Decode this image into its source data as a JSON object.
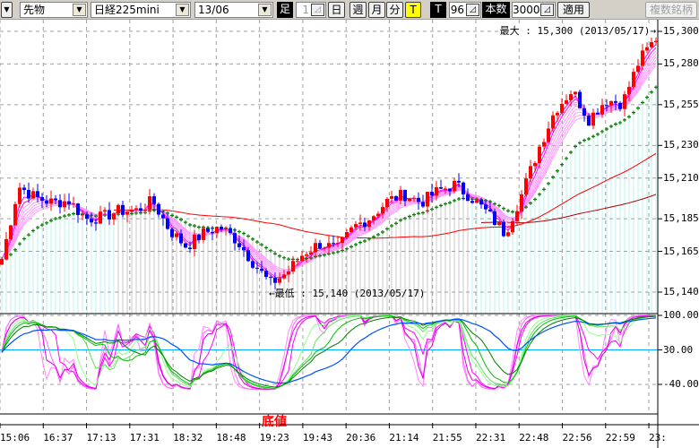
{
  "toolbar": {
    "market_select": "先物",
    "symbol_select": "日経225mini",
    "contract_select": "13/06",
    "bar_label": "足",
    "bar_value": "1",
    "day_button": "日",
    "week_button": "週",
    "month_button": "月",
    "minute_button": "分",
    "tick_button": "T",
    "t_label": "T",
    "t_value": "96",
    "count_label": "本数",
    "count_value": "3000",
    "apply_button": "適用",
    "multi_button": "複数銘柄"
  },
  "annotations": {
    "max": "最大 : 15,300 (2013/05/17)→",
    "min": "←最低 : 15,140 (2013/05/17)",
    "bottom": "底値"
  },
  "colors": {
    "up": "#ff0000",
    "down": "#0000ff",
    "ema": "#ff00ff",
    "ma_mid": "#008000",
    "ma_long": "#ff0000",
    "osc_blue": "#0050ff",
    "osc_line": "#00b0ff"
  },
  "chart_data": {
    "type": "candlestick",
    "price_axis": {
      "ticks": [
        "15,300",
        "15,280",
        "15,255",
        "15,230",
        "15,210",
        "15,185",
        "15,165",
        "15,140"
      ],
      "values": [
        15300,
        15280,
        15255,
        15230,
        15210,
        15185,
        15165,
        15140
      ],
      "range": [
        15133,
        15307
      ]
    },
    "osc_axis": {
      "ticks": [
        "100.00",
        "30.00",
        "-40.00"
      ],
      "values": [
        100,
        30,
        -40
      ]
    },
    "x_ticks": [
      "15:06",
      "16:37",
      "17:13",
      "17:31",
      "18:32",
      "18:48",
      "19:23",
      "19:43",
      "20:36",
      "21:14",
      "21:55",
      "22:31",
      "22:48",
      "22:56",
      "22:59",
      "23:"
    ],
    "close_path": [
      15160,
      15205,
      15198,
      15195,
      15196,
      15185,
      15186,
      15190,
      15190,
      15196,
      15178,
      15168,
      15176,
      15180,
      15172,
      15158,
      15145,
      15152,
      15164,
      15170,
      15166,
      15180,
      15186,
      15196,
      15200,
      15195,
      15202,
      15206,
      15198,
      15188,
      15176,
      15200,
      15228,
      15252,
      15264,
      15246,
      15258,
      15256,
      15282,
      15296
    ],
    "max": 15300,
    "min": 15140,
    "grid": true
  }
}
